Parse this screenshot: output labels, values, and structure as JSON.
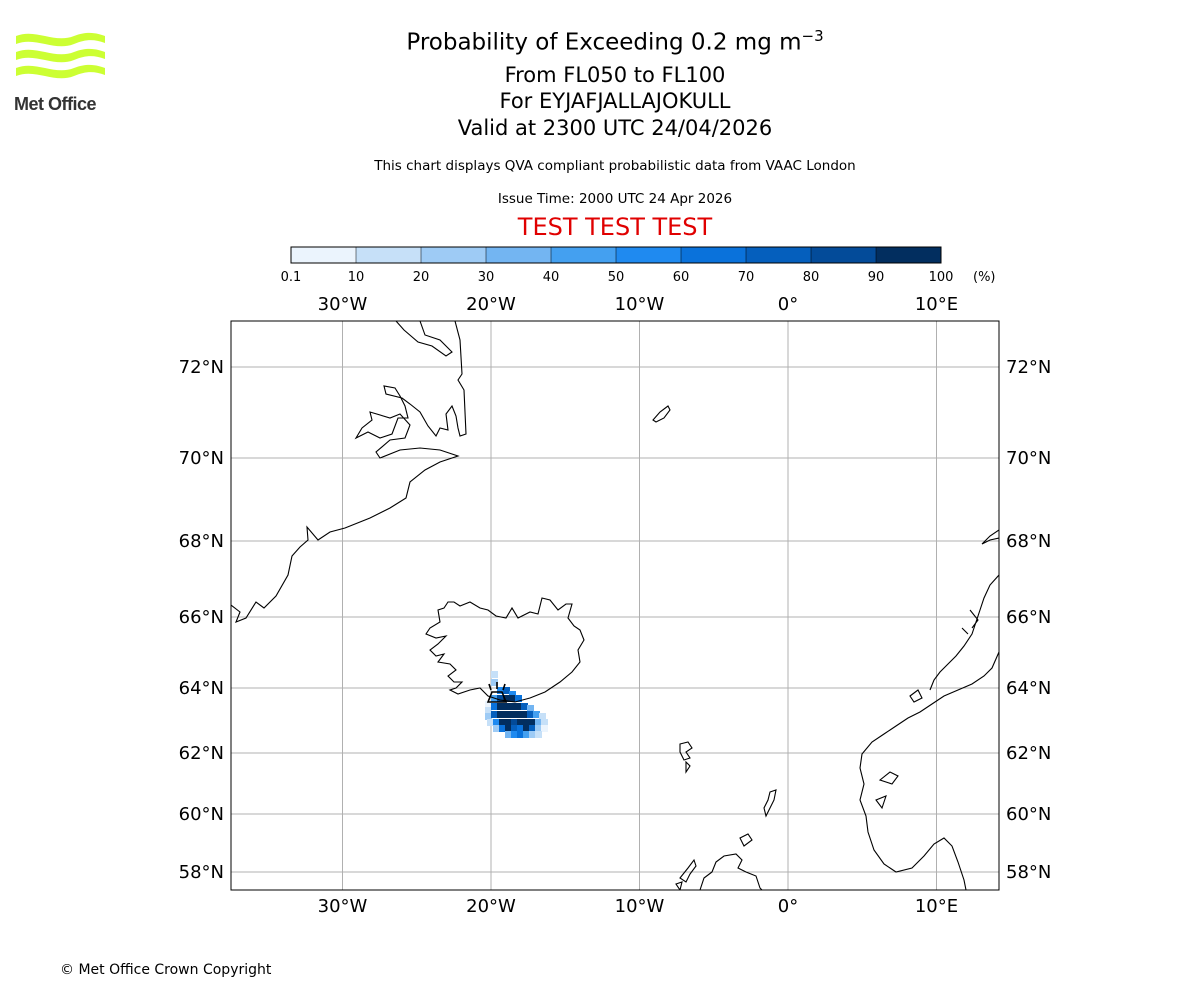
{
  "logo": {
    "text": "Met Office",
    "color": "#ccff33"
  },
  "title": {
    "main": "Probability of Exceeding 0.2 mg m",
    "main_sup": "−3",
    "levels": "From FL050 to FL100",
    "volcano": "For EYJAFJALLAJOKULL",
    "valid": "Valid at 2300 UTC 24/04/2026",
    "description": "This chart displays QVA compliant probabilistic data from VAAC London",
    "issue": "Issue Time: 2000 UTC 24 Apr 2026",
    "test_banner": "TEST TEST TEST",
    "test_color": "#e00000"
  },
  "colorbar": {
    "tick_labels": [
      "0.1",
      "10",
      "20",
      "30",
      "40",
      "50",
      "60",
      "70",
      "80",
      "90",
      "100"
    ],
    "unit": "(%)",
    "colors": [
      "#ebf4fd",
      "#c6e0f8",
      "#9ecbf5",
      "#73b5f2",
      "#44a0f0",
      "#1f8af0",
      "#0a72db",
      "#055fbd",
      "#034b99",
      "#022e5f"
    ]
  },
  "map": {
    "lon_ticks": [
      {
        "value": -30,
        "label": "30°W"
      },
      {
        "value": -20,
        "label": "20°W"
      },
      {
        "value": -10,
        "label": "10°W"
      },
      {
        "value": 0,
        "label": "0°"
      },
      {
        "value": 10,
        "label": "10°E"
      }
    ],
    "lat_ticks": [
      {
        "value": 72,
        "label": "72°N"
      },
      {
        "value": 70,
        "label": "70°N"
      },
      {
        "value": 68,
        "label": "68°N"
      },
      {
        "value": 66,
        "label": "66°N"
      },
      {
        "value": 64,
        "label": "64°N"
      },
      {
        "value": 62,
        "label": "62°N"
      },
      {
        "value": 60,
        "label": "60°N"
      },
      {
        "value": 58,
        "label": "58°N"
      }
    ],
    "volcano_marker": "volcano-icon"
  },
  "footer": {
    "copyright": "© Met Office Crown Copyright"
  }
}
